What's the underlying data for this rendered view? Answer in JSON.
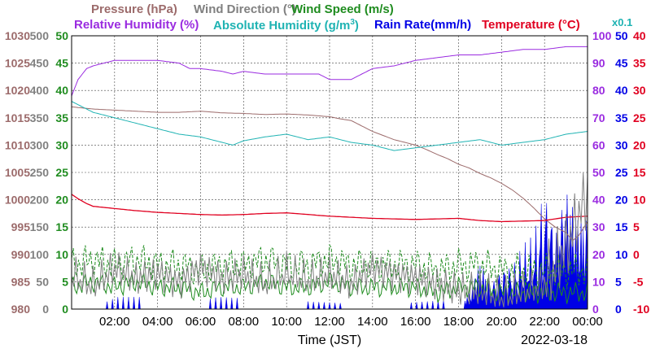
{
  "legend": {
    "pressure": "Pressure (hPa)",
    "wind_direction": "Wind Direction (°)",
    "wind_speed": "Wind Speed (m/s)",
    "relative_humidity": "Relative Humidity (%)",
    "absolute_humidity": "Absolute Humidity (g/m",
    "absolute_humidity_sup": "3",
    "absolute_humidity_close": ")",
    "rain_rate": "Rain Rate(mm/h)",
    "temperature": "Temperature (°C)",
    "rain_multiplier": "x0.1"
  },
  "footer": {
    "xlabel": "Time (JST)",
    "date": "2022-03-18"
  },
  "colors": {
    "pressure": "#9c6b6b",
    "wind_direction": "#808080",
    "wind_speed": "#1f8c1f",
    "relative_humidity": "#9a2be0",
    "absolute_humidity": "#1fb3b3",
    "rain_rate": "#0000e6",
    "temperature": "#e00020"
  },
  "chart_data": {
    "type": "line",
    "x_ticks": [
      "02:00",
      "04:00",
      "06:00",
      "08:00",
      "10:00",
      "12:00",
      "14:00",
      "16:00",
      "18:00",
      "20:00",
      "22:00",
      "00:00"
    ],
    "xlabel": "Time (JST)",
    "xlim_hours": [
      0,
      24
    ],
    "grid": true,
    "axes": {
      "pressure": {
        "label": "Pressure (hPa)",
        "range": [
          980,
          1030
        ],
        "ticks": [
          "1030",
          "1025",
          "1020",
          "1015",
          "1010",
          "1005",
          "1000",
          "995",
          "990",
          "985",
          "980"
        ]
      },
      "wind_direction": {
        "label": "Wind Direction (°)",
        "range": [
          0,
          500
        ],
        "ticks": [
          "500",
          "450",
          "400",
          "350",
          "300",
          "250",
          "200",
          "150",
          "100",
          "50",
          "0"
        ]
      },
      "wind_speed": {
        "label": "Wind Speed (m/s)",
        "range": [
          0,
          50
        ],
        "ticks": [
          "50",
          "45",
          "40",
          "35",
          "30",
          "25",
          "20",
          "15",
          "10",
          "5",
          "0"
        ]
      },
      "relative_humidity": {
        "label": "Relative Humidity (%)",
        "range": [
          0,
          100
        ],
        "ticks": [
          "100",
          "90",
          "80",
          "70",
          "60",
          "50",
          "40",
          "30",
          "20",
          "10",
          "0"
        ]
      },
      "rain_rate": {
        "label": "Rain Rate(mm/h) x0.1",
        "range": [
          0,
          50
        ],
        "ticks": [
          "50",
          "45",
          "40",
          "35",
          "30",
          "25",
          "20",
          "15",
          "10",
          "5",
          "0"
        ]
      },
      "temperature": {
        "label": "Temperature (°C)",
        "range": [
          -10,
          40
        ],
        "ticks": [
          "40",
          "35",
          "30",
          "25",
          "20",
          "15",
          "10",
          "5",
          "0",
          "-5",
          "-10"
        ]
      }
    },
    "series": [
      {
        "name": "Pressure (hPa)",
        "key": "pressure",
        "axis": "pressure",
        "x": [
          0,
          0.5,
          1,
          2,
          3,
          4,
          5,
          6,
          7,
          8,
          9,
          10,
          11,
          12,
          12.5,
          13,
          13.5,
          14,
          15,
          16,
          16.5,
          17,
          17.5,
          18,
          18.5,
          19,
          19.5,
          20,
          20.5,
          21,
          21.5,
          22,
          22.5,
          23,
          23.3,
          23.6,
          24
        ],
        "y": [
          1017,
          1016.8,
          1016.6,
          1016.4,
          1016.2,
          1016.0,
          1016.0,
          1016.2,
          1015.9,
          1015.8,
          1015.6,
          1015.7,
          1015.5,
          1015.2,
          1014.8,
          1014.5,
          1013.5,
          1012.5,
          1011.0,
          1010.0,
          1009.2,
          1008.3,
          1007.5,
          1006.5,
          1005.8,
          1004.8,
          1004.0,
          1003.0,
          1001.8,
          1000.3,
          998.5,
          996.5,
          995.0,
          994.0,
          992.5,
          993.5,
          996.0
        ]
      },
      {
        "name": "Relative Humidity (%)",
        "key": "relative_humidity",
        "axis": "relative_humidity",
        "x": [
          0,
          0.3,
          0.7,
          1,
          1.5,
          2,
          3,
          4,
          5,
          5.5,
          6,
          7,
          7.5,
          8,
          9,
          10,
          11,
          11.5,
          12,
          13,
          13.5,
          14,
          15,
          16,
          17,
          18,
          19,
          20,
          21,
          22,
          23,
          24
        ],
        "y": [
          78,
          84,
          88,
          89,
          90,
          91,
          91,
          91,
          90,
          88,
          88,
          87,
          86,
          87,
          86,
          86,
          86,
          86,
          84,
          84,
          86,
          88,
          89,
          91,
          92,
          93,
          93,
          94,
          95,
          95,
          96,
          96
        ]
      },
      {
        "name": "Absolute Humidity (g/m3)",
        "key": "absolute_humidity",
        "axis": "wind_speed",
        "x": [
          0,
          0.5,
          1,
          2,
          3,
          4,
          5,
          6,
          7,
          7.5,
          8,
          9,
          10,
          11,
          12,
          13,
          14,
          15,
          16,
          17,
          18,
          19,
          20,
          21,
          22,
          23,
          24
        ],
        "y": [
          38,
          37,
          36,
          35,
          34,
          33,
          32,
          31.5,
          30.5,
          30,
          30.8,
          31.5,
          32,
          31,
          31.5,
          30.5,
          30,
          29,
          29.5,
          30,
          30.5,
          31,
          30,
          30.5,
          31,
          32,
          32.5
        ]
      },
      {
        "name": "Temperature (°C)",
        "key": "temperature",
        "axis": "temperature",
        "x": [
          0,
          0.3,
          0.7,
          1,
          2,
          3,
          4,
          5,
          6,
          7,
          8,
          9,
          10,
          11,
          12,
          13,
          14,
          15,
          16,
          17,
          18,
          19,
          20,
          21,
          22,
          23,
          24
        ],
        "y": [
          11,
          10.2,
          9.3,
          8.8,
          8.4,
          8.0,
          7.7,
          7.5,
          7.3,
          7.2,
          7.3,
          7.5,
          7.6,
          7.3,
          7.0,
          6.8,
          6.6,
          6.5,
          6.4,
          6.5,
          6.6,
          6.2,
          6.0,
          6.1,
          6.2,
          6.8,
          7.0
        ]
      },
      {
        "name": "Wind Speed (m/s)",
        "key": "wind_speed",
        "axis": "wind_speed",
        "x": [
          0,
          1,
          2,
          3,
          4,
          5,
          6,
          7,
          8,
          9,
          10,
          11,
          12,
          13,
          14,
          15,
          16,
          17,
          18,
          19,
          20,
          21,
          22,
          23,
          24
        ],
        "y": [
          5,
          6,
          5,
          6,
          5,
          5,
          4,
          5,
          5,
          6,
          5,
          5,
          6,
          5,
          5,
          5,
          5,
          4,
          5,
          5,
          4,
          4,
          4,
          4,
          4
        ],
        "style": "dashed-and-solid"
      },
      {
        "name": "Wind Direction (°)",
        "key": "wind_direction",
        "axis": "wind_direction",
        "x": [
          0,
          1,
          2,
          3,
          4,
          5,
          6,
          7,
          8,
          9,
          10,
          11,
          12,
          13,
          14,
          15,
          16,
          17,
          18,
          19,
          20,
          21,
          22,
          23,
          24
        ],
        "y": [
          60,
          40,
          70,
          50,
          60,
          40,
          70,
          50,
          60,
          45,
          65,
          50,
          60,
          40,
          70,
          55,
          50,
          40,
          30,
          30,
          20,
          30,
          40,
          100,
          200
        ],
        "style": "oscillating"
      },
      {
        "name": "Rain Rate(mm/h)",
        "key": "rain_rate",
        "axis": "rain_rate",
        "x": [
          0,
          0.2,
          0.5,
          1.5,
          2.1,
          3.5,
          5.5,
          6.8,
          12.5,
          14.8,
          15.5,
          17.8,
          18.5,
          19,
          19.5,
          20,
          20.5,
          21,
          21.5,
          22,
          22.5,
          23,
          23.5,
          24
        ],
        "y": [
          1,
          0,
          1,
          0.5,
          1,
          1,
          0.5,
          1,
          0.5,
          1,
          0.5,
          0.8,
          2,
          6,
          3,
          5,
          5,
          7,
          8,
          14,
          10,
          15,
          12,
          11
        ],
        "style": "filled-spikes"
      }
    ]
  }
}
